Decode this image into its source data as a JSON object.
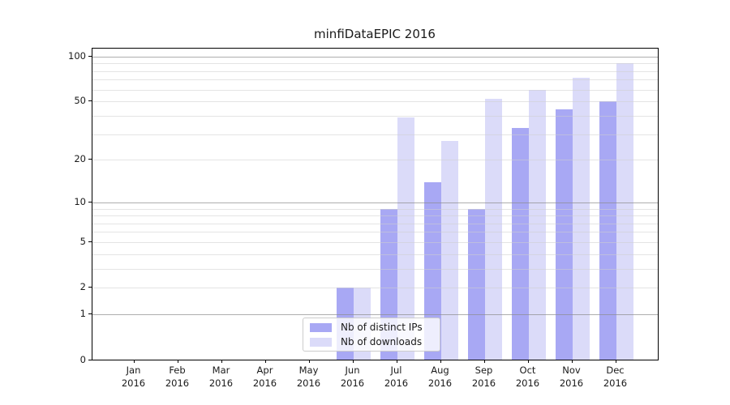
{
  "chart_data": {
    "type": "bar",
    "title": "minfiDataEPIC 2016",
    "year_label": "2016",
    "categories": [
      "Jan",
      "Feb",
      "Mar",
      "Apr",
      "May",
      "Jun",
      "Jul",
      "Aug",
      "Sep",
      "Oct",
      "Nov",
      "Dec"
    ],
    "series": [
      {
        "name": "Nb of distinct IPs",
        "color": "#a8a8f4",
        "values": [
          0,
          0,
          0,
          0,
          0,
          2,
          9,
          14,
          9,
          33,
          44,
          50
        ]
      },
      {
        "name": "Nb of downloads",
        "color": "#dbdbf9",
        "values": [
          0,
          0,
          0,
          0,
          0,
          2,
          39,
          27,
          52,
          60,
          72,
          90
        ]
      }
    ],
    "xlabel": "",
    "ylabel": "",
    "y_axis": {
      "scale": "log1p",
      "tick_labels": [
        "0",
        "1",
        "2",
        "5",
        "10",
        "20",
        "50",
        "100"
      ],
      "tick_values": [
        0,
        1,
        2,
        5,
        10,
        20,
        50,
        100
      ],
      "major_grid_values": [
        1,
        10,
        100
      ],
      "minor_grid_values": [
        2,
        3,
        4,
        5,
        6,
        7,
        8,
        9,
        20,
        30,
        40,
        50,
        60,
        70,
        80,
        90
      ],
      "ylim": [
        0,
        105
      ]
    },
    "grid": true,
    "legend_position": "lower center-left inside plot"
  }
}
